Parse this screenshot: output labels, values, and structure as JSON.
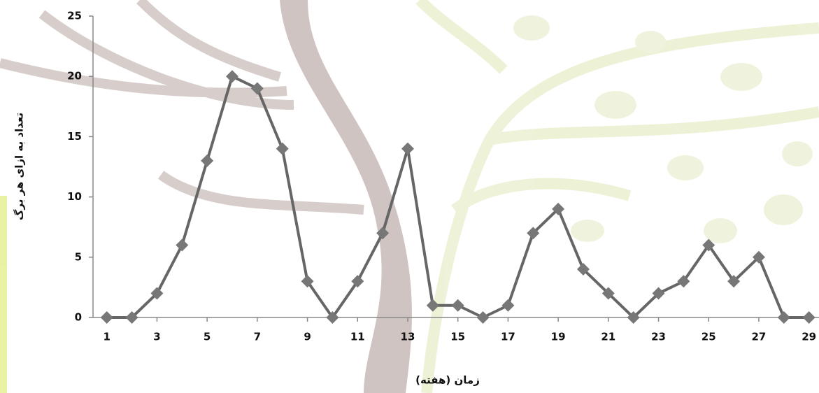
{
  "chart_data": {
    "type": "line",
    "x_label": "زمان (هفته)",
    "y_label": "تعداد به ازای هر برگ",
    "x": [
      1,
      2,
      3,
      4,
      5,
      6,
      7,
      8,
      9,
      10,
      11,
      12,
      13,
      14,
      15,
      16,
      17,
      18,
      19,
      20,
      21,
      22,
      23,
      24,
      25,
      26,
      27,
      28,
      29
    ],
    "values": [
      0,
      0,
      2,
      6,
      13,
      20,
      19,
      14,
      3,
      0,
      3,
      7,
      14,
      1,
      1,
      0,
      1,
      7,
      9,
      4,
      2,
      0,
      2,
      3,
      6,
      3,
      5,
      0,
      0
    ],
    "color": "#666666",
    "marker_color": "#777777",
    "xlim": [
      0.45,
      29.4
    ],
    "xticks": [
      1,
      3,
      5,
      7,
      9,
      11,
      13,
      15,
      17,
      19,
      21,
      23,
      25,
      27,
      29
    ],
    "ylim": [
      0,
      25
    ],
    "yticks": [
      0,
      5,
      10,
      15,
      20,
      25
    ]
  }
}
